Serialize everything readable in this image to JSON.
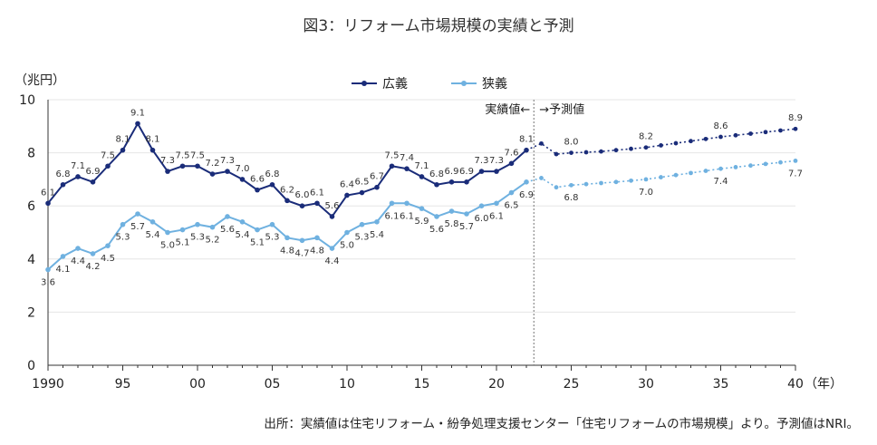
{
  "title": "図3：リフォーム市場規模の実績と予測",
  "source": "出所：実績値は住宅リフォーム・紛争処理支援センター「住宅リフォームの市場規模」より。予測値はNRI。",
  "chart_data": {
    "type": "line",
    "ylabel": "（兆円）",
    "xunit": "（年）",
    "ylim": [
      0,
      10
    ],
    "yticks": [
      0,
      2,
      4,
      6,
      8,
      10
    ],
    "xlim": [
      1990,
      2040
    ],
    "xticks": [
      {
        "value": 1990,
        "label": "1990"
      },
      {
        "value": 1995,
        "label": "95"
      },
      {
        "value": 2000,
        "label": "00"
      },
      {
        "value": 2005,
        "label": "05"
      },
      {
        "value": 2010,
        "label": "10"
      },
      {
        "value": 2015,
        "label": "15"
      },
      {
        "value": 2020,
        "label": "20"
      },
      {
        "value": 2025,
        "label": "25"
      },
      {
        "value": 2030,
        "label": "30"
      },
      {
        "value": 2035,
        "label": "35"
      },
      {
        "value": 2040,
        "label": "40"
      }
    ],
    "grid": true,
    "legend": "top-center",
    "divider": {
      "x": 2022.5,
      "left_label": "実績値←",
      "right_label": "→予測値"
    },
    "series": [
      {
        "name": "広義",
        "color": "#1a2c79",
        "actual": {
          "x": [
            1990,
            1991,
            1992,
            1993,
            1994,
            1995,
            1996,
            1997,
            1998,
            1999,
            2000,
            2001,
            2002,
            2003,
            2004,
            2005,
            2006,
            2007,
            2008,
            2009,
            2010,
            2011,
            2012,
            2013,
            2014,
            2015,
            2016,
            2017,
            2018,
            2019,
            2020,
            2021,
            2022
          ],
          "y": [
            6.1,
            6.8,
            7.1,
            6.9,
            7.5,
            8.1,
            9.1,
            8.1,
            7.3,
            7.5,
            7.5,
            7.2,
            7.3,
            7.0,
            6.6,
            6.8,
            6.2,
            6.0,
            6.1,
            5.6,
            6.4,
            6.5,
            6.7,
            7.5,
            7.4,
            7.1,
            6.8,
            6.9,
            6.9,
            7.3,
            7.3,
            7.6,
            8.1
          ]
        },
        "forecast": {
          "x": [
            2023,
            2024,
            2025,
            2026,
            2027,
            2028,
            2029,
            2030,
            2031,
            2032,
            2033,
            2034,
            2035,
            2036,
            2037,
            2038,
            2039,
            2040
          ],
          "y": [
            8.35,
            7.95,
            8.0,
            8.02,
            8.05,
            8.1,
            8.15,
            8.2,
            8.28,
            8.36,
            8.44,
            8.52,
            8.6,
            8.66,
            8.72,
            8.78,
            8.84,
            8.9
          ]
        },
        "labels": [
          {
            "x": 1990,
            "y": 6.1,
            "text": "6.1"
          },
          {
            "x": 1991,
            "y": 6.8,
            "text": "6.8"
          },
          {
            "x": 1992,
            "y": 7.1,
            "text": "7.1"
          },
          {
            "x": 1993,
            "y": 6.9,
            "text": "6.9"
          },
          {
            "x": 1994,
            "y": 7.5,
            "text": "7.5"
          },
          {
            "x": 1995,
            "y": 8.1,
            "text": "8.1"
          },
          {
            "x": 1996,
            "y": 9.1,
            "text": "9.1"
          },
          {
            "x": 1997,
            "y": 8.1,
            "text": "8.1"
          },
          {
            "x": 1998,
            "y": 7.3,
            "text": "7.3"
          },
          {
            "x": 1999,
            "y": 7.5,
            "text": "7.5"
          },
          {
            "x": 2000,
            "y": 7.5,
            "text": "7.5"
          },
          {
            "x": 2001,
            "y": 7.2,
            "text": "7.2"
          },
          {
            "x": 2002,
            "y": 7.3,
            "text": "7.3"
          },
          {
            "x": 2003,
            "y": 7.0,
            "text": "7.0"
          },
          {
            "x": 2004,
            "y": 6.6,
            "text": "6.6"
          },
          {
            "x": 2005,
            "y": 6.8,
            "text": "6.8"
          },
          {
            "x": 2006,
            "y": 6.2,
            "text": "6.2"
          },
          {
            "x": 2007,
            "y": 6.0,
            "text": "6.0"
          },
          {
            "x": 2008,
            "y": 6.1,
            "text": "6.1"
          },
          {
            "x": 2009,
            "y": 5.6,
            "text": "5.6"
          },
          {
            "x": 2010,
            "y": 6.4,
            "text": "6.4"
          },
          {
            "x": 2011,
            "y": 6.5,
            "text": "6.5"
          },
          {
            "x": 2012,
            "y": 6.7,
            "text": "6.7"
          },
          {
            "x": 2013,
            "y": 7.5,
            "text": "7.5"
          },
          {
            "x": 2014,
            "y": 7.4,
            "text": "7.4"
          },
          {
            "x": 2015,
            "y": 7.1,
            "text": "7.1"
          },
          {
            "x": 2016,
            "y": 6.8,
            "text": "6.8"
          },
          {
            "x": 2017,
            "y": 6.9,
            "text": "6.9"
          },
          {
            "x": 2018,
            "y": 6.9,
            "text": "6.9"
          },
          {
            "x": 2019,
            "y": 7.3,
            "text": "7.3"
          },
          {
            "x": 2020,
            "y": 7.3,
            "text": "7.3"
          },
          {
            "x": 2021,
            "y": 7.6,
            "text": "7.6"
          },
          {
            "x": 2022,
            "y": 8.1,
            "text": "8.1"
          },
          {
            "x": 2025,
            "y": 8.0,
            "text": "8.0"
          },
          {
            "x": 2030,
            "y": 8.2,
            "text": "8.2"
          },
          {
            "x": 2035,
            "y": 8.6,
            "text": "8.6"
          },
          {
            "x": 2040,
            "y": 8.9,
            "text": "8.9"
          }
        ]
      },
      {
        "name": "狭義",
        "color": "#6fb1e0",
        "actual": {
          "x": [
            1990,
            1991,
            1992,
            1993,
            1994,
            1995,
            1996,
            1997,
            1998,
            1999,
            2000,
            2001,
            2002,
            2003,
            2004,
            2005,
            2006,
            2007,
            2008,
            2009,
            2010,
            2011,
            2012,
            2013,
            2014,
            2015,
            2016,
            2017,
            2018,
            2019,
            2020,
            2021,
            2022
          ],
          "y": [
            3.6,
            4.1,
            4.4,
            4.2,
            4.5,
            5.3,
            5.7,
            5.4,
            5.0,
            5.1,
            5.3,
            5.2,
            5.6,
            5.4,
            5.1,
            5.3,
            4.8,
            4.7,
            4.8,
            4.4,
            5.0,
            5.3,
            5.4,
            6.1,
            6.1,
            5.9,
            5.6,
            5.8,
            5.7,
            6.0,
            6.1,
            6.5,
            6.9
          ]
        },
        "forecast": {
          "x": [
            2023,
            2024,
            2025,
            2026,
            2027,
            2028,
            2029,
            2030,
            2031,
            2032,
            2033,
            2034,
            2035,
            2036,
            2037,
            2038,
            2039,
            2040
          ],
          "y": [
            7.05,
            6.7,
            6.78,
            6.82,
            6.86,
            6.9,
            6.95,
            7.0,
            7.08,
            7.16,
            7.24,
            7.32,
            7.4,
            7.46,
            7.52,
            7.58,
            7.64,
            7.7
          ]
        },
        "labels": [
          {
            "x": 1990,
            "y": 3.6,
            "text": "3.6"
          },
          {
            "x": 1991,
            "y": 4.1,
            "text": "4.1"
          },
          {
            "x": 1992,
            "y": 4.4,
            "text": "4.4"
          },
          {
            "x": 1993,
            "y": 4.2,
            "text": "4.2"
          },
          {
            "x": 1994,
            "y": 4.5,
            "text": "4.5"
          },
          {
            "x": 1995,
            "y": 5.3,
            "text": "5.3"
          },
          {
            "x": 1996,
            "y": 5.7,
            "text": "5.7"
          },
          {
            "x": 1997,
            "y": 5.4,
            "text": "5.4"
          },
          {
            "x": 1998,
            "y": 5.0,
            "text": "5.0"
          },
          {
            "x": 1999,
            "y": 5.1,
            "text": "5.1"
          },
          {
            "x": 2000,
            "y": 5.3,
            "text": "5.3"
          },
          {
            "x": 2001,
            "y": 5.2,
            "text": "5.2"
          },
          {
            "x": 2002,
            "y": 5.6,
            "text": "5.6"
          },
          {
            "x": 2003,
            "y": 5.4,
            "text": "5.4"
          },
          {
            "x": 2004,
            "y": 5.1,
            "text": "5.1"
          },
          {
            "x": 2005,
            "y": 5.3,
            "text": "5.3"
          },
          {
            "x": 2006,
            "y": 4.8,
            "text": "4.8"
          },
          {
            "x": 2007,
            "y": 4.7,
            "text": "4.7"
          },
          {
            "x": 2008,
            "y": 4.8,
            "text": "4.8"
          },
          {
            "x": 2009,
            "y": 4.4,
            "text": "4.4"
          },
          {
            "x": 2010,
            "y": 5.0,
            "text": "5.0"
          },
          {
            "x": 2011,
            "y": 5.3,
            "text": "5.3"
          },
          {
            "x": 2012,
            "y": 5.4,
            "text": "5.4"
          },
          {
            "x": 2013,
            "y": 6.1,
            "text": "6.1"
          },
          {
            "x": 2014,
            "y": 6.1,
            "text": "6.1"
          },
          {
            "x": 2015,
            "y": 5.9,
            "text": "5.9"
          },
          {
            "x": 2016,
            "y": 5.6,
            "text": "5.6"
          },
          {
            "x": 2017,
            "y": 5.8,
            "text": "5.8"
          },
          {
            "x": 2018,
            "y": 5.7,
            "text": "5.7"
          },
          {
            "x": 2019,
            "y": 6.0,
            "text": "6.0"
          },
          {
            "x": 2020,
            "y": 6.1,
            "text": "6.1"
          },
          {
            "x": 2021,
            "y": 6.5,
            "text": "6.5"
          },
          {
            "x": 2022,
            "y": 6.9,
            "text": "6.9"
          },
          {
            "x": 2025,
            "y": 6.8,
            "text": "6.8"
          },
          {
            "x": 2030,
            "y": 7.0,
            "text": "7.0"
          },
          {
            "x": 2035,
            "y": 7.4,
            "text": "7.4"
          },
          {
            "x": 2040,
            "y": 7.7,
            "text": "7.7"
          }
        ]
      }
    ]
  }
}
